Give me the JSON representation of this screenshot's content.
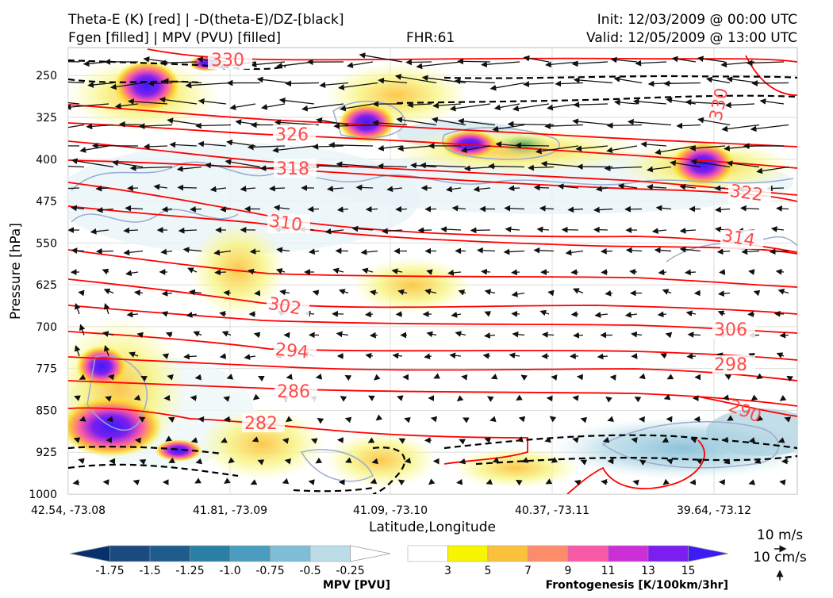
{
  "header": {
    "title_left_1": "Theta-E (K) [red] | -D(theta-E)/DZ-[black]",
    "title_left_2": "Fgen [filled] | MPV (PVU) [filled]",
    "fhr": "FHR:61",
    "init": "Init: 12/03/2009 @ 00:00 UTC",
    "valid": "Valid: 12/05/2009 @ 13:00 UTC"
  },
  "chart_data": {
    "type": "heatmap",
    "xlabel": "Latitude,Longitude",
    "ylabel": "Pressure [hPa]",
    "x_ticks": [
      "42.54, -73.08",
      "41.81, -73.09",
      "41.09, -73.10",
      "40.37, -73.11",
      "39.64, -73.12"
    ],
    "y_ticks": [
      250,
      325,
      400,
      475,
      550,
      625,
      700,
      775,
      850,
      925,
      1000
    ],
    "ylim": [
      200,
      1000
    ],
    "y_inverted": true,
    "grid": true,
    "theta_e_contours": {
      "color": "#ff0000",
      "labels": [
        "330",
        "326",
        "318",
        "310",
        "302",
        "294",
        "286",
        "282",
        "330",
        "322",
        "314",
        "306",
        "298",
        "290"
      ]
    },
    "dtheta_dz_contours": {
      "color": "#000000",
      "style": "dashed"
    },
    "mpv_colorbar": {
      "label": "MPV [PVU]",
      "ticks": [
        "-1.75",
        "-1.5",
        "-1.25",
        "-1.0",
        "-0.75",
        "-0.5",
        "-0.25"
      ],
      "colors": [
        "#08306b",
        "#1a4a80",
        "#1f5c8e",
        "#2b7ea6",
        "#4a9dc0",
        "#80bdd6",
        "#bcdde8",
        "#ffffff"
      ]
    },
    "fgen_colorbar": {
      "label": "Frontogenesis [K/100km/3hr]",
      "ticks": [
        "3",
        "5",
        "7",
        "9",
        "11",
        "13",
        "15"
      ],
      "colors": [
        "#ffffff",
        "#f8f500",
        "#fcc13a",
        "#fd8c6b",
        "#f95aa8",
        "#cc2fd6",
        "#7c1ef0",
        "#3b1cf5"
      ]
    },
    "wind_legend": {
      "horizontal": "10 m/s",
      "vertical": "10 cm/s"
    }
  }
}
